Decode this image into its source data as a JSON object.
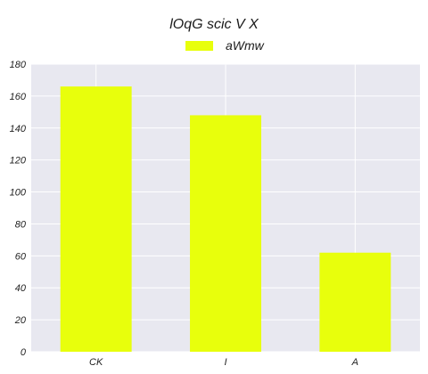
{
  "chart_data": {
    "type": "bar",
    "title": "lOqG scic V X",
    "xlabel": "",
    "ylabel": "",
    "categories": [
      "CK",
      "I",
      "A"
    ],
    "series": [
      {
        "name": "aWmw",
        "values": [
          166,
          148,
          62
        ],
        "color": "#e8ff0c"
      }
    ],
    "ylim": [
      0,
      180
    ],
    "yticks": [
      0,
      20,
      40,
      60,
      80,
      100,
      120,
      140,
      160,
      180
    ],
    "grid": true,
    "legend_position": "top-center",
    "plot_background": "#e8e8f0",
    "grid_color": "#ffffff"
  }
}
